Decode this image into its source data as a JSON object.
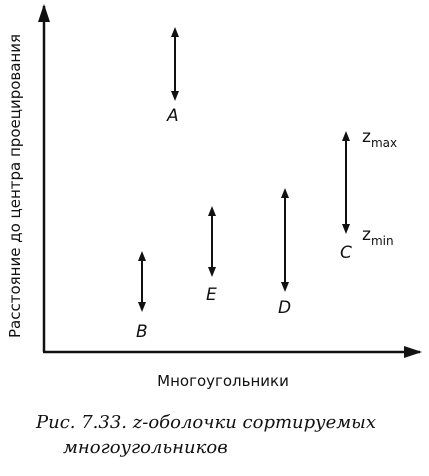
{
  "diagram": {
    "y_axis_label": "Расстояние до центра проецирования",
    "x_axis_label": "Многоугольники",
    "polygons": [
      {
        "label": "A"
      },
      {
        "label": "B"
      },
      {
        "label": "E"
      },
      {
        "label": "D"
      },
      {
        "label": "C"
      }
    ],
    "zmax_label": {
      "base": "z",
      "sub": "max"
    },
    "zmin_label": {
      "base": "z",
      "sub": "min"
    }
  },
  "caption": {
    "line1": "Рис. 7.33. z-оболочки сортируемых",
    "line2": "многоугольников"
  }
}
